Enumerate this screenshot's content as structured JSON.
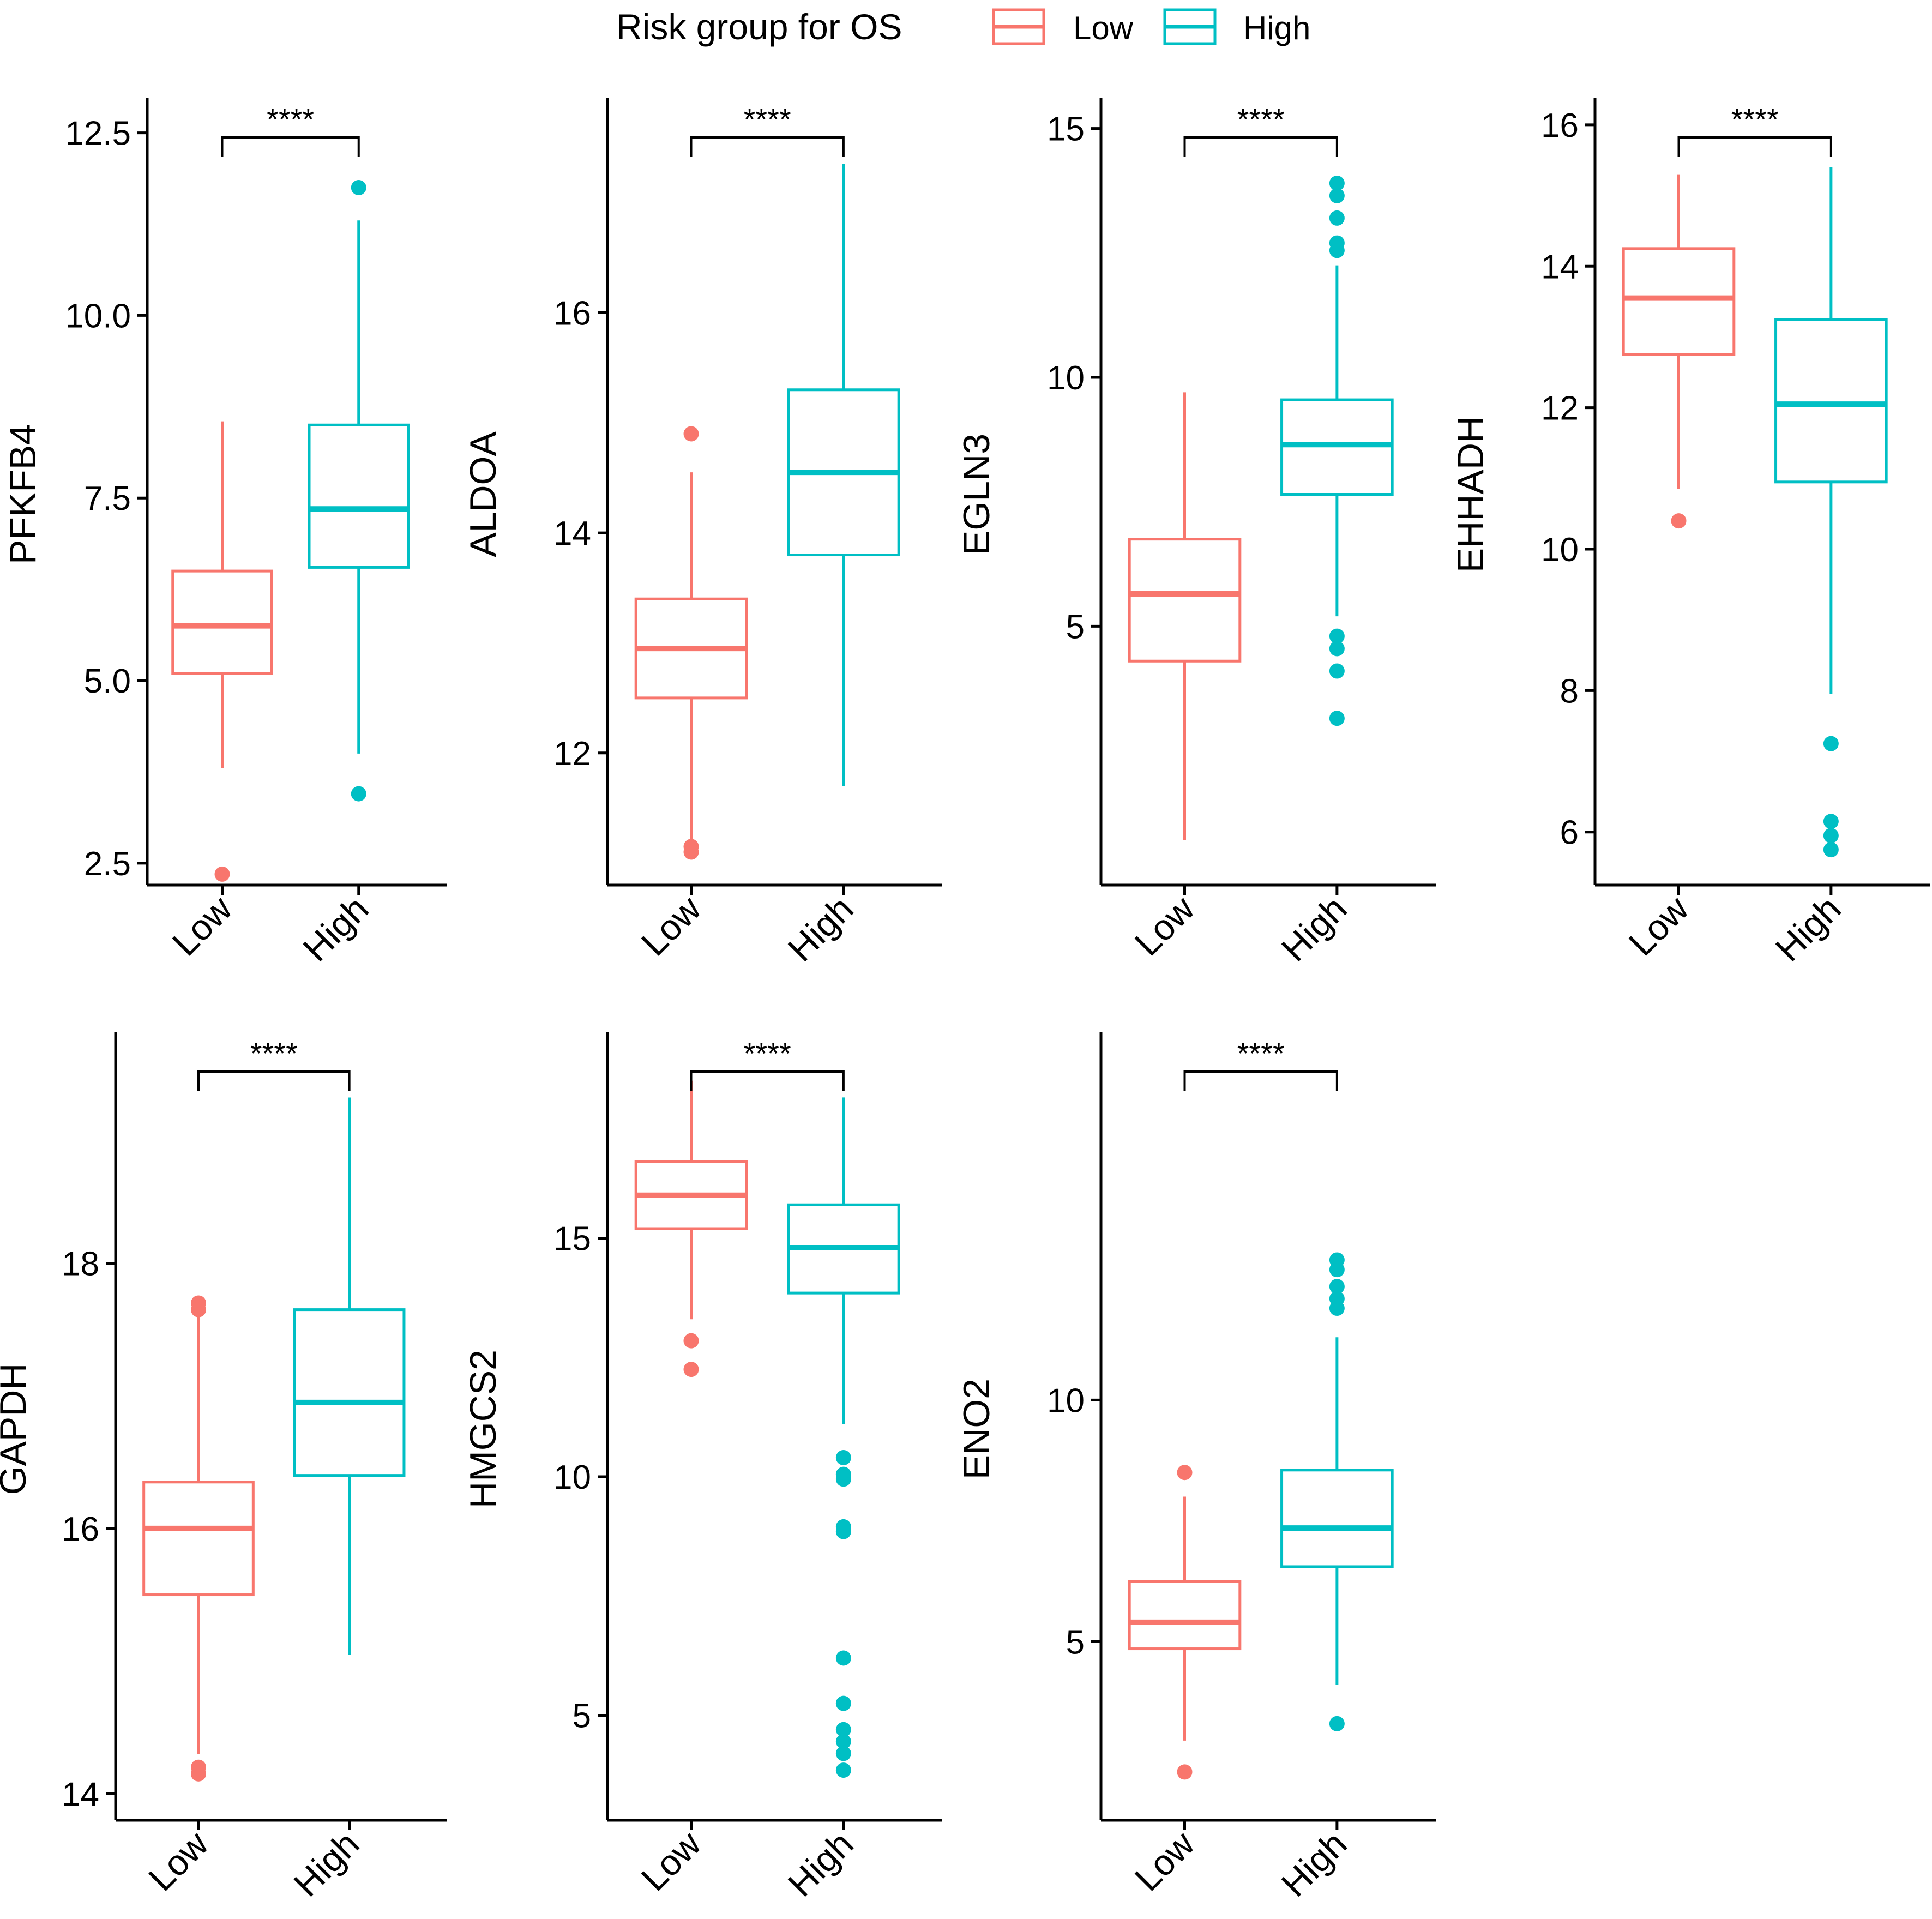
{
  "legend": {
    "title": "Risk group for OS",
    "items": [
      {
        "label": "Low",
        "color": "#F8766D"
      },
      {
        "label": "High",
        "color": "#00BFC4"
      }
    ]
  },
  "chart_data": [
    {
      "type": "boxplot",
      "ylabel": "PFKFB4",
      "categories": [
        "Low",
        "High"
      ],
      "ylim": [
        2.2,
        12.9
      ],
      "yticks": [
        2.5,
        5.0,
        7.5,
        10.0,
        12.5
      ],
      "ytick_labels": [
        "2.5",
        "5.0",
        "7.5",
        "10.0",
        "12.5"
      ],
      "significance": "****",
      "boxes": [
        {
          "group": "Low",
          "whisker_low": 3.8,
          "q1": 5.1,
          "median": 5.75,
          "q3": 6.5,
          "whisker_high": 8.55,
          "outliers": [
            2.35
          ]
        },
        {
          "group": "High",
          "whisker_low": 4.0,
          "q1": 6.55,
          "median": 7.35,
          "q3": 8.5,
          "whisker_high": 11.3,
          "outliers": [
            11.75,
            3.45
          ]
        }
      ]
    },
    {
      "type": "boxplot",
      "ylabel": "ALDOA",
      "categories": [
        "Low",
        "High"
      ],
      "ylim": [
        10.8,
        17.9
      ],
      "yticks": [
        12,
        14,
        16
      ],
      "ytick_labels": [
        "12",
        "14",
        "16"
      ],
      "significance": "****",
      "boxes": [
        {
          "group": "Low",
          "whisker_low": 11.2,
          "q1": 12.5,
          "median": 12.95,
          "q3": 13.4,
          "whisker_high": 14.55,
          "outliers": [
            14.9,
            11.15,
            11.1
          ]
        },
        {
          "group": "High",
          "whisker_low": 11.7,
          "q1": 13.8,
          "median": 14.55,
          "q3": 15.3,
          "whisker_high": 17.35,
          "outliers": []
        }
      ]
    },
    {
      "type": "boxplot",
      "ylabel": "EGLN3",
      "categories": [
        "Low",
        "High"
      ],
      "ylim": [
        -0.2,
        15.5
      ],
      "yticks": [
        5,
        10,
        15
      ],
      "ytick_labels": [
        "5",
        "10",
        "15"
      ],
      "significance": "****",
      "boxes": [
        {
          "group": "Low",
          "whisker_low": 0.7,
          "q1": 4.3,
          "median": 5.65,
          "q3": 6.75,
          "whisker_high": 9.7,
          "outliers": []
        },
        {
          "group": "High",
          "whisker_low": 5.2,
          "q1": 7.65,
          "median": 8.65,
          "q3": 9.55,
          "whisker_high": 12.25,
          "outliers": [
            13.9,
            13.65,
            13.2,
            12.7,
            12.55,
            4.8,
            4.55,
            4.1,
            3.15
          ]
        }
      ]
    },
    {
      "type": "boxplot",
      "ylabel": "EHHADH",
      "categories": [
        "Low",
        "High"
      ],
      "ylim": [
        5.25,
        16.3
      ],
      "yticks": [
        6,
        8,
        10,
        12,
        14,
        16
      ],
      "ytick_labels": [
        "6",
        "8",
        "10",
        "12",
        "14",
        "16"
      ],
      "significance": "****",
      "boxes": [
        {
          "group": "Low",
          "whisker_low": 10.85,
          "q1": 12.75,
          "median": 13.55,
          "q3": 14.25,
          "whisker_high": 15.3,
          "outliers": [
            10.4
          ]
        },
        {
          "group": "High",
          "whisker_low": 7.95,
          "q1": 10.95,
          "median": 12.05,
          "q3": 13.25,
          "whisker_high": 15.4,
          "outliers": [
            7.25,
            6.15,
            5.95,
            5.75
          ]
        }
      ]
    },
    {
      "type": "boxplot",
      "ylabel": "GAPDH",
      "categories": [
        "Low",
        "High"
      ],
      "ylim": [
        13.8,
        19.7
      ],
      "yticks": [
        14,
        16,
        18
      ],
      "ytick_labels": [
        "14",
        "16",
        "18"
      ],
      "significance": "****",
      "boxes": [
        {
          "group": "Low",
          "whisker_low": 14.3,
          "q1": 15.5,
          "median": 16.0,
          "q3": 16.35,
          "whisker_high": 17.6,
          "outliers": [
            17.7,
            17.65,
            14.2,
            14.15
          ]
        },
        {
          "group": "High",
          "whisker_low": 15.05,
          "q1": 16.4,
          "median": 16.95,
          "q3": 17.65,
          "whisker_high": 19.25,
          "outliers": []
        }
      ]
    },
    {
      "type": "boxplot",
      "ylabel": "HMGCS2",
      "categories": [
        "Low",
        "High"
      ],
      "ylim": [
        2.8,
        19.2
      ],
      "yticks": [
        5,
        10,
        15
      ],
      "ytick_labels": [
        "5",
        "10",
        "15"
      ],
      "significance": "****",
      "boxes": [
        {
          "group": "Low",
          "whisker_low": 13.3,
          "q1": 15.2,
          "median": 15.9,
          "q3": 16.6,
          "whisker_high": 18.3,
          "outliers": [
            12.85,
            12.25
          ]
        },
        {
          "group": "High",
          "whisker_low": 11.1,
          "q1": 13.85,
          "median": 14.8,
          "q3": 15.7,
          "whisker_high": 17.95,
          "outliers": [
            10.4,
            10.05,
            9.95,
            8.95,
            8.85,
            6.2,
            5.25,
            4.7,
            4.45,
            4.2,
            3.85
          ]
        }
      ]
    },
    {
      "type": "boxplot",
      "ylabel": "ENO2",
      "categories": [
        "Low",
        "High"
      ],
      "ylim": [
        1.3,
        17.5
      ],
      "yticks": [
        5,
        10
      ],
      "ytick_labels": [
        "5",
        "10"
      ],
      "significance": "****",
      "boxes": [
        {
          "group": "Low",
          "whisker_low": 2.95,
          "q1": 4.85,
          "median": 5.4,
          "q3": 6.25,
          "whisker_high": 8.0,
          "outliers": [
            8.5,
            2.3
          ]
        },
        {
          "group": "High",
          "whisker_low": 4.1,
          "q1": 6.55,
          "median": 7.35,
          "q3": 8.55,
          "whisker_high": 11.3,
          "outliers": [
            12.9,
            12.7,
            12.35,
            12.1,
            11.9,
            3.3
          ]
        }
      ]
    }
  ]
}
